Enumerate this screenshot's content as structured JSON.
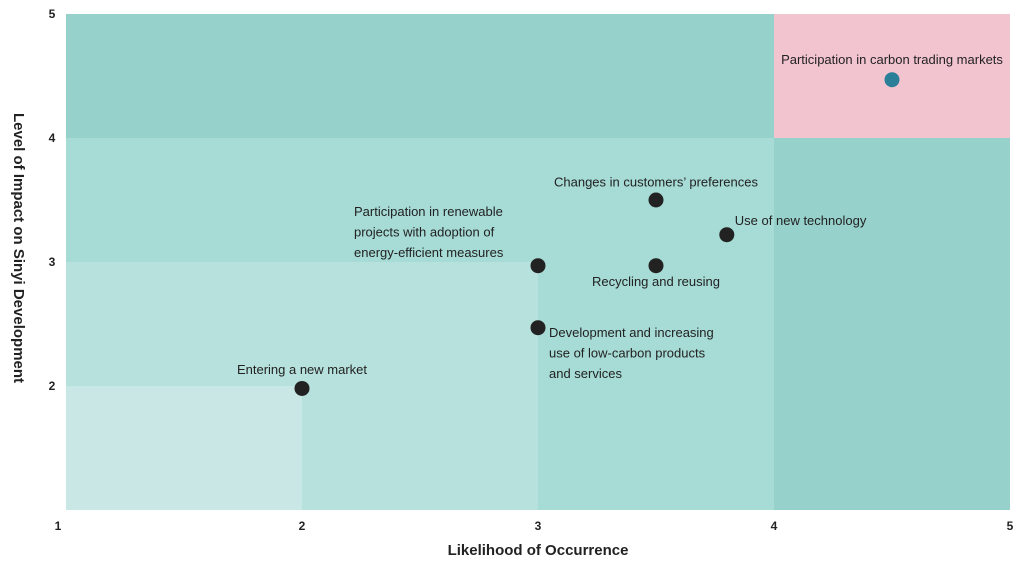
{
  "chart_data": {
    "type": "scatter",
    "xlabel": "Likelihood of Occurrence",
    "ylabel": "Level of Impact on Sinyi Development",
    "xlim": [
      1,
      5
    ],
    "ylim": [
      1,
      5
    ],
    "xticks": [
      1,
      2,
      3,
      4,
      5
    ],
    "yticks": [
      1,
      2,
      3,
      4,
      5
    ],
    "series": [
      {
        "color": "#222222",
        "highlight_color": "#2b7f98",
        "x": [
          4.5,
          3.5,
          3.8,
          3,
          3.5,
          3,
          2
        ],
        "values": [
          4.47,
          3.5,
          3.22,
          2.97,
          2.97,
          2.47,
          1.98
        ],
        "labels": [
          [
            "Participation in carbon trading markets"
          ],
          [
            "Changes in customers’ preferences"
          ],
          [
            "Use of new technology"
          ],
          [
            "Participation in renewable",
            "projects with adoption of",
            "energy-efficient measures"
          ],
          [
            "Recycling and reusing"
          ],
          [
            "Development and increasing",
            "use of low-carbon products",
            "and services"
          ],
          [
            "Entering a new market"
          ]
        ]
      }
    ]
  }
}
